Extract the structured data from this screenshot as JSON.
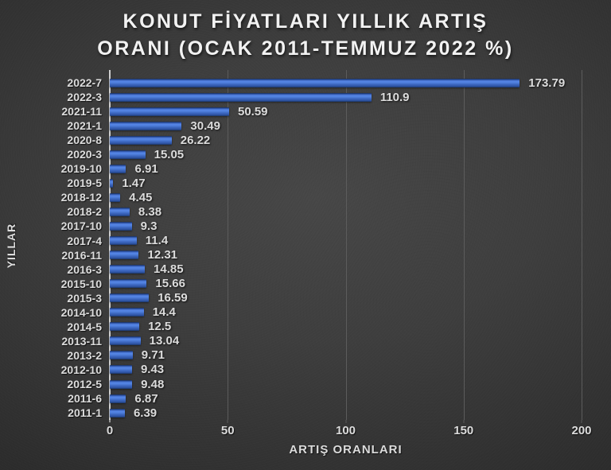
{
  "title": {
    "line1": "KONUT FİYATLARI YILLIK ARTIŞ",
    "line2": "ORANI (OCAK 2011-TEMMUZ 2022 %)"
  },
  "chart_data": {
    "type": "bar",
    "orientation": "horizontal",
    "title": "KONUT FİYATLARI YILLIK ARTIŞ ORANI (OCAK 2011-TEMMUZ 2022 %)",
    "categories": [
      "2022-7",
      "2022-3",
      "2021-11",
      "2021-1",
      "2020-8",
      "2020-3",
      "2019-10",
      "2019-5",
      "2018-12",
      "2018-2",
      "2017-10",
      "2017-4",
      "2016-11",
      "2016-3",
      "2015-10",
      "2015-3",
      "2014-10",
      "2014-5",
      "2013-11",
      "2013-2",
      "2012-10",
      "2012-5",
      "2011-6",
      "2011-1"
    ],
    "values": [
      173.79,
      110.9,
      50.59,
      30.49,
      26.22,
      15.05,
      6.91,
      1.47,
      4.45,
      8.38,
      9.3,
      11.4,
      12.31,
      14.85,
      15.66,
      16.59,
      14.4,
      12.5,
      13.04,
      9.71,
      9.43,
      9.48,
      6.87,
      6.39
    ],
    "data_labels": [
      "173.79",
      "110.9",
      "50.59",
      "30.49",
      "26.22",
      "15.05",
      "6.91",
      "1.47",
      "4.45",
      "8.38",
      "9.3",
      "11.4",
      "12.31",
      "14.85",
      "15.66",
      "16.59",
      "14.4",
      "12.5",
      "13.04",
      "9.71",
      "9.43",
      "9.48",
      "6.87",
      "6.39"
    ],
    "xlabel": "ARTIŞ ORANLARI",
    "ylabel": "YILLAR",
    "xlim": [
      0,
      200
    ],
    "xticks": [
      "0",
      "50",
      "100",
      "150",
      "200"
    ],
    "grid": true,
    "legend_position": "none"
  },
  "colors": {
    "background_center": "#474747",
    "background_edge": "#222222",
    "title_text": "#f2f2f2",
    "label_text": "#dcdcdc",
    "gridline": "#5c5c5c",
    "axis_line": "#cfcfcf",
    "bar_top": "#14284f",
    "bar_highlight": "#5585e6",
    "bar_main": "#3c67c0",
    "bar_bottom": "#1b3565"
  }
}
